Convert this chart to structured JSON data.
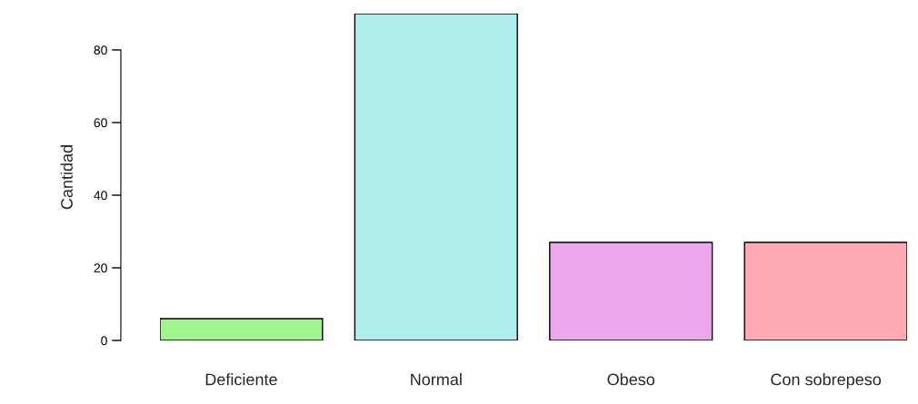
{
  "chart_data": {
    "type": "bar",
    "ylabel": "Cantidad",
    "categories": [
      "Deficiente",
      "Normal",
      "Obeso",
      "Con sobrepeso"
    ],
    "values": [
      6,
      90,
      27,
      27
    ],
    "colors": [
      "#a0f590",
      "#b0eded",
      "#eda8ed",
      "#ffabb5"
    ],
    "ylim": [
      0,
      90
    ],
    "yticks": [
      0,
      20,
      40,
      60,
      80
    ],
    "grid": false,
    "legend": false
  }
}
